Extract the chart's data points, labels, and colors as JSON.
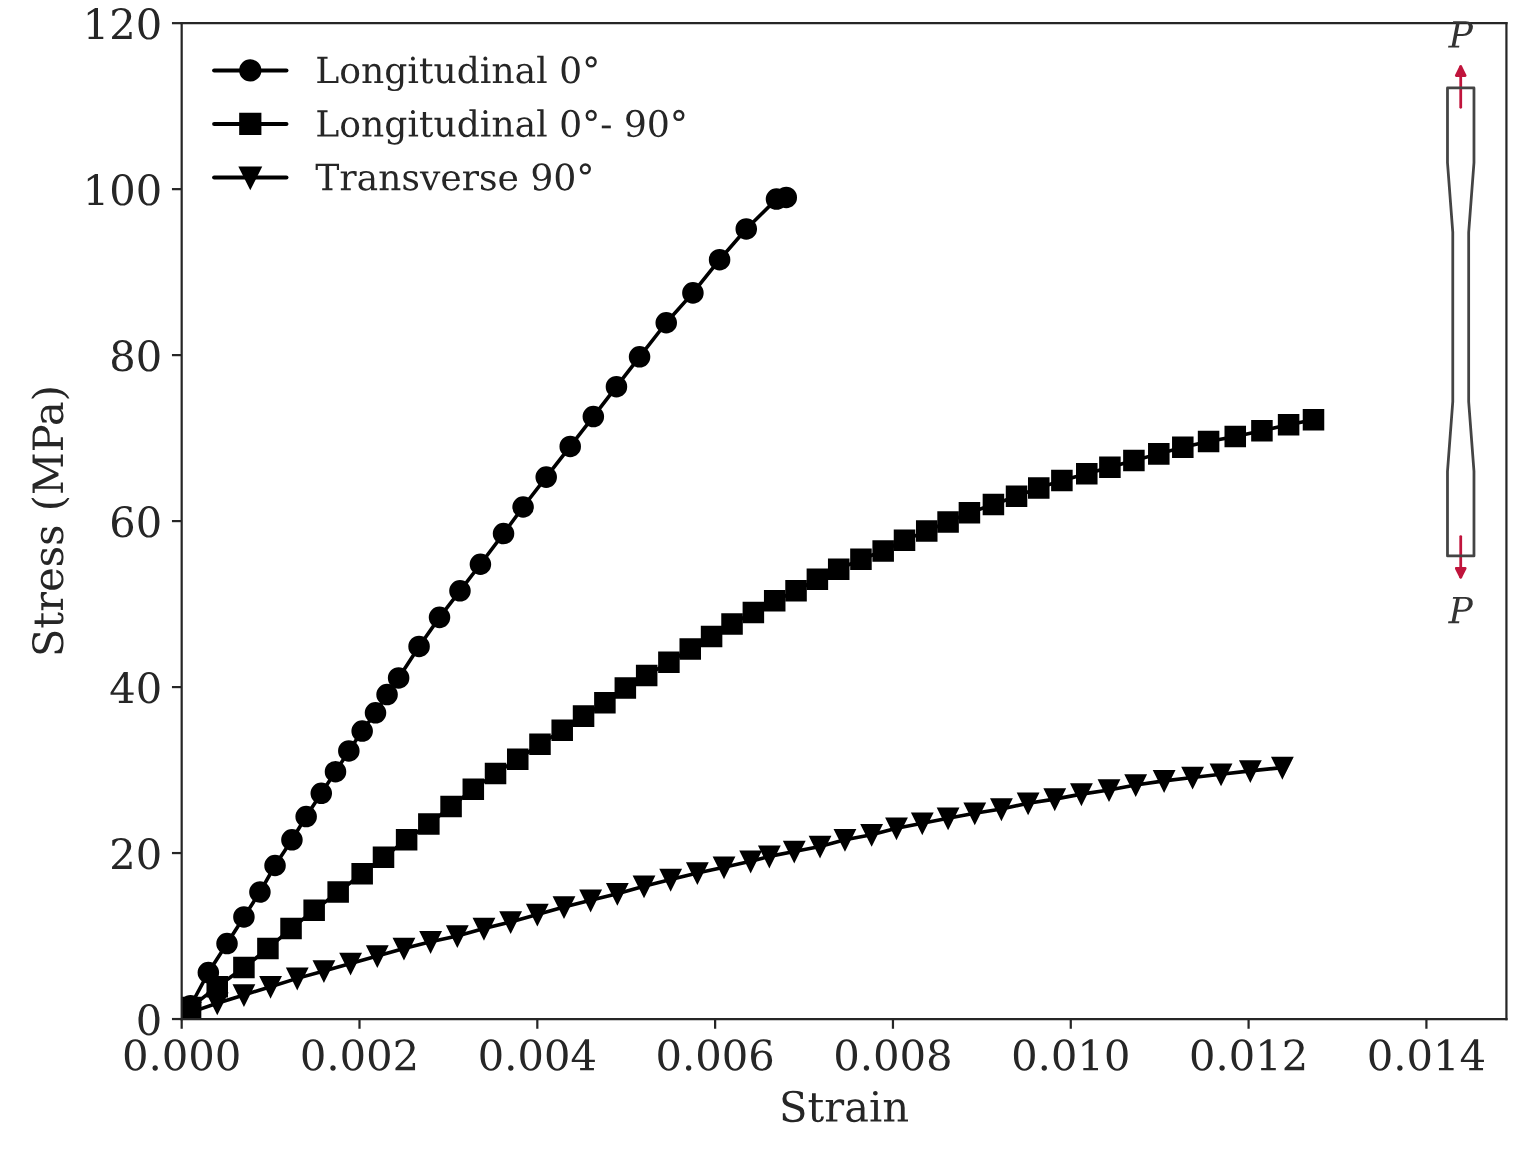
{
  "chart_data": {
    "type": "line",
    "xlabel": "Strain",
    "ylabel": "Stress (MPa)",
    "xlim": [
      0,
      0.0149
    ],
    "ylim": [
      0,
      120
    ],
    "xticks": [
      {
        "value": 0,
        "label": "0.000"
      },
      {
        "value": 0.002,
        "label": "0.002"
      },
      {
        "value": 0.004,
        "label": "0.004"
      },
      {
        "value": 0.006,
        "label": "0.006"
      },
      {
        "value": 0.008,
        "label": "0.008"
      },
      {
        "value": 0.01,
        "label": "0.010"
      },
      {
        "value": 0.012,
        "label": "0.012"
      },
      {
        "value": 0.014,
        "label": "0.014"
      }
    ],
    "yticks": [
      0,
      20,
      40,
      60,
      80,
      100,
      120
    ],
    "legend": "top left",
    "grid": false,
    "line_style": "solid",
    "annotations": [
      "P",
      "P"
    ],
    "series": [
      {
        "name": "Longitudinal 0°",
        "color": "#000000",
        "marker": "circle",
        "x": [
          0.0001,
          0.0003,
          0.00051,
          0.0007,
          0.00088,
          0.00105,
          0.00124,
          0.0014,
          0.00157,
          0.00173,
          0.00188,
          0.00203,
          0.00218,
          0.00231,
          0.00244,
          0.00267,
          0.0029,
          0.00313,
          0.00336,
          0.00362,
          0.00384,
          0.0041,
          0.00437,
          0.00463,
          0.00489,
          0.00515,
          0.00545,
          0.00575,
          0.00605,
          0.00635,
          0.00669,
          0.0068
        ],
        "values": [
          1.6,
          5.6,
          9.1,
          12.3,
          15.3,
          18.5,
          21.6,
          24.4,
          27.2,
          29.8,
          32.3,
          34.7,
          36.9,
          39.1,
          41.1,
          44.9,
          48.4,
          51.6,
          54.8,
          58.5,
          61.7,
          65.3,
          69.0,
          72.6,
          76.2,
          79.8,
          83.9,
          87.5,
          91.5,
          95.2,
          98.8,
          99.0
        ]
      },
      {
        "name": "Longitudinal 0°- 90°",
        "color": "#000000",
        "marker": "square",
        "x": [
          0.0001,
          0.0004,
          0.0007,
          0.00097,
          0.00123,
          0.00149,
          0.00176,
          0.00203,
          0.00227,
          0.00253,
          0.00278,
          0.00303,
          0.00328,
          0.00353,
          0.00378,
          0.00403,
          0.00428,
          0.00452,
          0.00476,
          0.00499,
          0.00523,
          0.00548,
          0.00572,
          0.00596,
          0.00619,
          0.00643,
          0.00667,
          0.00691,
          0.00715,
          0.00739,
          0.00764,
          0.00789,
          0.00813,
          0.00838,
          0.00862,
          0.00886,
          0.00913,
          0.00939,
          0.00964,
          0.0099,
          0.01018,
          0.01044,
          0.01071,
          0.01099,
          0.01126,
          0.01155,
          0.01185,
          0.01215,
          0.01245,
          0.01273
        ],
        "values": [
          1.4,
          3.9,
          6.2,
          8.5,
          10.9,
          13.1,
          15.3,
          17.5,
          19.5,
          21.6,
          23.5,
          25.6,
          27.7,
          29.6,
          31.3,
          33.1,
          34.8,
          36.5,
          38.1,
          39.9,
          41.4,
          43.0,
          44.6,
          46.1,
          47.6,
          49.0,
          50.4,
          51.6,
          53.0,
          54.2,
          55.4,
          56.4,
          57.7,
          58.8,
          59.9,
          61.0,
          62.0,
          63.0,
          64.0,
          64.9,
          65.7,
          66.5,
          67.3,
          68.1,
          68.9,
          69.6,
          70.2,
          70.9,
          71.6,
          72.2
        ]
      },
      {
        "name": "Transverse 90°",
        "color": "#000000",
        "marker": "triangle",
        "x": [
          0.0001,
          0.0004,
          0.0007,
          0.001,
          0.0013,
          0.0016,
          0.0019,
          0.0022,
          0.0025,
          0.0028,
          0.0031,
          0.0034,
          0.0037,
          0.004,
          0.0043,
          0.0046,
          0.0049,
          0.0052,
          0.0055,
          0.0058,
          0.0061,
          0.0064,
          0.00661,
          0.00689,
          0.00718,
          0.00746,
          0.00776,
          0.00804,
          0.00833,
          0.00862,
          0.00892,
          0.00922,
          0.00952,
          0.00982,
          0.01012,
          0.01043,
          0.01073,
          0.01105,
          0.01137,
          0.01169,
          0.01202,
          0.01238
        ],
        "values": [
          0.8,
          1.9,
          2.9,
          3.9,
          4.9,
          5.8,
          6.7,
          7.6,
          8.5,
          9.3,
          10.0,
          10.9,
          11.7,
          12.6,
          13.5,
          14.3,
          15.1,
          16.0,
          16.8,
          17.6,
          18.3,
          19.0,
          19.6,
          20.2,
          20.8,
          21.6,
          22.2,
          23.0,
          23.6,
          24.2,
          24.8,
          25.3,
          26.0,
          26.5,
          27.1,
          27.6,
          28.2,
          28.7,
          29.1,
          29.5,
          29.9,
          30.3
        ]
      }
    ]
  }
}
